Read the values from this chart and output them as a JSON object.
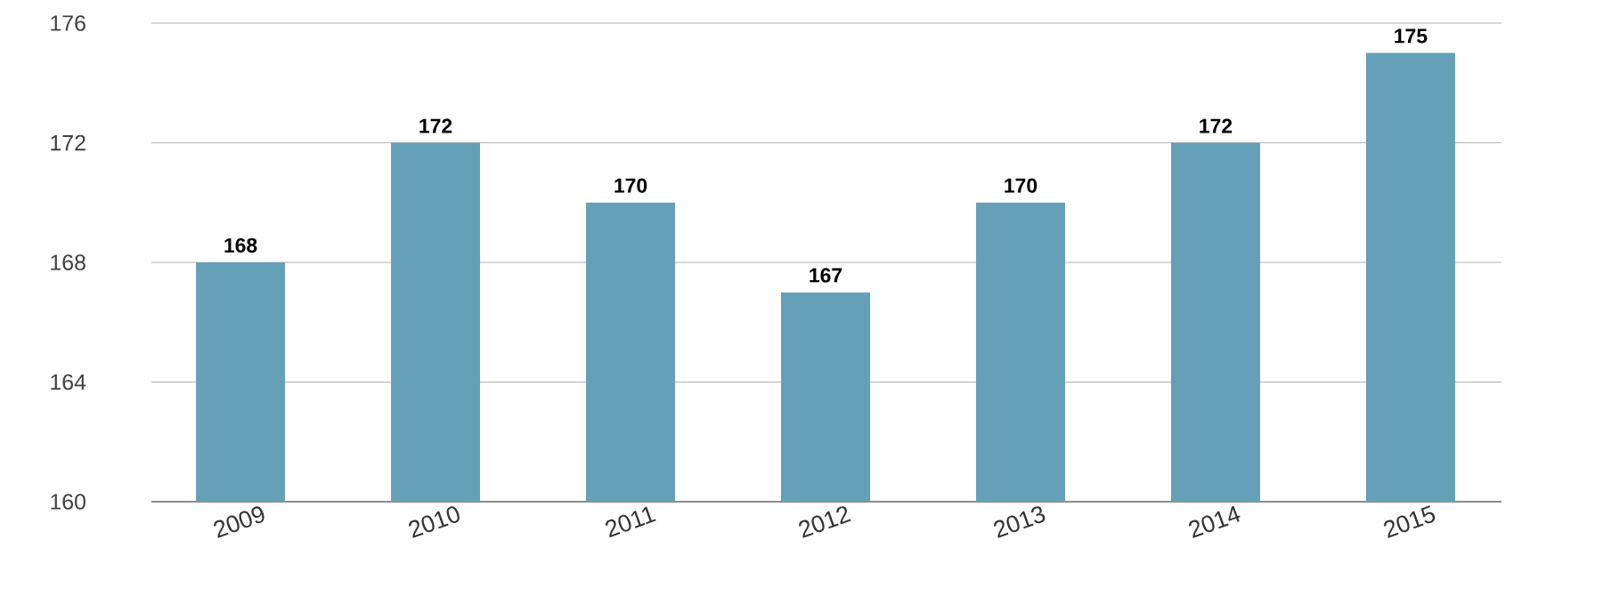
{
  "chart_data": {
    "type": "bar",
    "categories": [
      "2009",
      "2010",
      "2011",
      "2012",
      "2013",
      "2014",
      "2015"
    ],
    "values": [
      168,
      172,
      170,
      167,
      170,
      172,
      175
    ],
    "color": "#65a0b9",
    "ylim": [
      160,
      176
    ],
    "yticks": [
      160,
      164,
      168,
      172,
      176
    ],
    "grid": "y",
    "data_labels": true
  }
}
